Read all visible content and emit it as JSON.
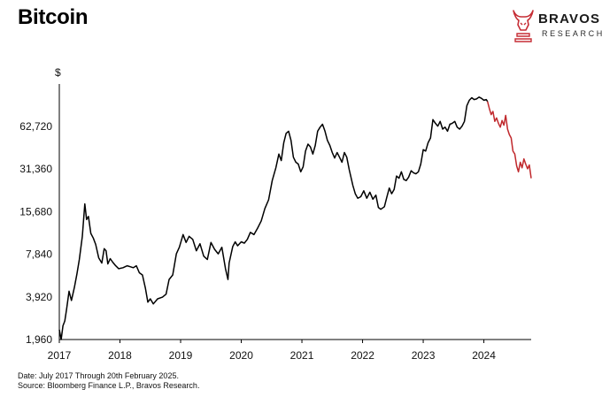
{
  "chart_data": {
    "type": "line",
    "title": "Bitcoin",
    "ylabel": "$",
    "y_scale": "log",
    "ylim": [
      1960,
      125000
    ],
    "xlim": [
      2017.0,
      2024.78
    ],
    "y_ticks": [
      1960,
      3920,
      7840,
      15680,
      31360,
      62720
    ],
    "y_tick_labels": [
      "1,960",
      "3,920",
      "7,840",
      "15,680",
      "31,360",
      "62,720"
    ],
    "x_ticks": [
      2017,
      2018,
      2019,
      2020,
      2021,
      2022,
      2023,
      2024
    ],
    "x_tick_labels": [
      "2017",
      "2018",
      "2019",
      "2020",
      "2021",
      "2022",
      "2023",
      "2024"
    ],
    "grid": false,
    "series": [
      {
        "color": "#000000",
        "points": [
          [
            2017.0,
            2300
          ],
          [
            2017.03,
            1960
          ],
          [
            2017.06,
            2450
          ],
          [
            2017.09,
            2650
          ],
          [
            2017.12,
            3200
          ],
          [
            2017.16,
            4300
          ],
          [
            2017.2,
            3700
          ],
          [
            2017.25,
            4600
          ],
          [
            2017.29,
            5700
          ],
          [
            2017.33,
            7200
          ],
          [
            2017.38,
            10500
          ],
          [
            2017.42,
            17800
          ],
          [
            2017.45,
            13800
          ],
          [
            2017.48,
            14500
          ],
          [
            2017.52,
            11000
          ],
          [
            2017.56,
            10200
          ],
          [
            2017.6,
            9200
          ],
          [
            2017.65,
            7400
          ],
          [
            2017.7,
            6800
          ],
          [
            2017.74,
            8600
          ],
          [
            2017.77,
            8300
          ],
          [
            2017.8,
            6700
          ],
          [
            2017.84,
            7300
          ],
          [
            2017.88,
            6900
          ],
          [
            2017.93,
            6500
          ],
          [
            2017.98,
            6200
          ],
          [
            2018.05,
            6300
          ],
          [
            2018.12,
            6500
          ],
          [
            2018.17,
            6400
          ],
          [
            2018.22,
            6300
          ],
          [
            2018.27,
            6500
          ],
          [
            2018.32,
            5800
          ],
          [
            2018.37,
            5600
          ],
          [
            2018.42,
            4500
          ],
          [
            2018.46,
            3600
          ],
          [
            2018.5,
            3800
          ],
          [
            2018.55,
            3500
          ],
          [
            2018.62,
            3800
          ],
          [
            2018.7,
            3900
          ],
          [
            2018.76,
            4100
          ],
          [
            2018.81,
            5200
          ],
          [
            2018.87,
            5600
          ],
          [
            2018.93,
            7900
          ],
          [
            2018.98,
            8800
          ],
          [
            2019.04,
            10800
          ],
          [
            2019.09,
            9500
          ],
          [
            2019.14,
            10500
          ],
          [
            2019.2,
            10000
          ],
          [
            2019.26,
            8300
          ],
          [
            2019.32,
            9300
          ],
          [
            2019.38,
            7600
          ],
          [
            2019.44,
            7200
          ],
          [
            2019.5,
            9500
          ],
          [
            2019.56,
            8500
          ],
          [
            2019.62,
            7900
          ],
          [
            2019.68,
            8800
          ],
          [
            2019.74,
            6200
          ],
          [
            2019.78,
            5200
          ],
          [
            2019.8,
            6800
          ],
          [
            2019.86,
            8900
          ],
          [
            2019.9,
            9600
          ],
          [
            2019.94,
            9000
          ],
          [
            2020.0,
            9600
          ],
          [
            2020.05,
            9400
          ],
          [
            2020.1,
            10000
          ],
          [
            2020.15,
            11200
          ],
          [
            2020.21,
            10800
          ],
          [
            2020.27,
            12000
          ],
          [
            2020.33,
            13500
          ],
          [
            2020.39,
            16500
          ],
          [
            2020.45,
            19000
          ],
          [
            2020.51,
            26000
          ],
          [
            2020.57,
            32000
          ],
          [
            2020.62,
            40000
          ],
          [
            2020.66,
            36000
          ],
          [
            2020.7,
            48000
          ],
          [
            2020.74,
            56000
          ],
          [
            2020.78,
            58000
          ],
          [
            2020.82,
            50000
          ],
          [
            2020.86,
            38000
          ],
          [
            2020.9,
            35000
          ],
          [
            2020.94,
            34000
          ],
          [
            2020.98,
            30000
          ],
          [
            2021.02,
            32500
          ],
          [
            2021.06,
            42000
          ],
          [
            2021.1,
            47000
          ],
          [
            2021.14,
            45000
          ],
          [
            2021.18,
            40000
          ],
          [
            2021.22,
            46000
          ],
          [
            2021.26,
            58000
          ],
          [
            2021.3,
            62000
          ],
          [
            2021.34,
            65000
          ],
          [
            2021.38,
            58000
          ],
          [
            2021.42,
            50000
          ],
          [
            2021.46,
            46000
          ],
          [
            2021.5,
            41000
          ],
          [
            2021.54,
            37500
          ],
          [
            2021.58,
            41000
          ],
          [
            2021.62,
            38000
          ],
          [
            2021.66,
            35000
          ],
          [
            2021.7,
            41000
          ],
          [
            2021.74,
            38000
          ],
          [
            2021.78,
            31000
          ],
          [
            2021.84,
            24000
          ],
          [
            2021.88,
            21000
          ],
          [
            2021.92,
            19500
          ],
          [
            2021.97,
            20000
          ],
          [
            2022.02,
            22000
          ],
          [
            2022.07,
            19500
          ],
          [
            2022.12,
            21500
          ],
          [
            2022.17,
            19200
          ],
          [
            2022.22,
            20500
          ],
          [
            2022.26,
            16800
          ],
          [
            2022.3,
            16300
          ],
          [
            2022.36,
            17000
          ],
          [
            2022.4,
            19800
          ],
          [
            2022.44,
            23000
          ],
          [
            2022.48,
            21000
          ],
          [
            2022.52,
            22500
          ],
          [
            2022.56,
            28000
          ],
          [
            2022.6,
            27000
          ],
          [
            2022.64,
            30000
          ],
          [
            2022.68,
            26500
          ],
          [
            2022.72,
            26000
          ],
          [
            2022.76,
            27500
          ],
          [
            2022.8,
            30500
          ],
          [
            2022.84,
            29500
          ],
          [
            2022.88,
            29000
          ],
          [
            2022.92,
            30000
          ],
          [
            2022.96,
            34000
          ],
          [
            2023.0,
            43000
          ],
          [
            2023.04,
            42000
          ],
          [
            2023.08,
            48000
          ],
          [
            2023.12,
            52000
          ],
          [
            2023.16,
            70000
          ],
          [
            2023.2,
            66000
          ],
          [
            2023.24,
            63000
          ],
          [
            2023.28,
            68000
          ],
          [
            2023.32,
            60000
          ],
          [
            2023.36,
            62000
          ],
          [
            2023.4,
            58000
          ],
          [
            2023.44,
            65000
          ],
          [
            2023.48,
            66000
          ],
          [
            2023.52,
            68000
          ],
          [
            2023.56,
            62000
          ],
          [
            2023.6,
            60000
          ],
          [
            2023.64,
            63000
          ],
          [
            2023.68,
            68000
          ],
          [
            2023.72,
            88000
          ],
          [
            2023.76,
            96000
          ],
          [
            2023.8,
            100000
          ],
          [
            2023.84,
            97000
          ],
          [
            2023.88,
            98000
          ],
          [
            2023.92,
            101000
          ],
          [
            2023.96,
            99000
          ],
          [
            2024.0,
            96000
          ],
          [
            2024.04,
            97000
          ],
          [
            2024.06,
            94000
          ]
        ]
      },
      {
        "color": "#c0282c",
        "points": [
          [
            2024.06,
            94000
          ],
          [
            2024.09,
            84000
          ],
          [
            2024.12,
            76000
          ],
          [
            2024.15,
            80000
          ],
          [
            2024.18,
            68000
          ],
          [
            2024.21,
            72000
          ],
          [
            2024.24,
            66000
          ],
          [
            2024.27,
            62000
          ],
          [
            2024.3,
            69000
          ],
          [
            2024.33,
            64000
          ],
          [
            2024.36,
            75000
          ],
          [
            2024.39,
            60000
          ],
          [
            2024.42,
            55000
          ],
          [
            2024.45,
            52000
          ],
          [
            2024.48,
            42000
          ],
          [
            2024.51,
            40000
          ],
          [
            2024.54,
            33000
          ],
          [
            2024.57,
            30000
          ],
          [
            2024.6,
            35000
          ],
          [
            2024.63,
            32000
          ],
          [
            2024.66,
            37000
          ],
          [
            2024.69,
            34000
          ],
          [
            2024.72,
            31500
          ],
          [
            2024.75,
            33500
          ],
          [
            2024.78,
            27000
          ]
        ]
      }
    ]
  },
  "brand": {
    "name": "BRAVOS",
    "sub": "RESEARCH",
    "accent": "#c62d35"
  },
  "footer": {
    "line1": "Date: July 2017 Through 20th February 2025.",
    "line2": "Source: Bloomberg Finance L.P., Bravos Research."
  }
}
